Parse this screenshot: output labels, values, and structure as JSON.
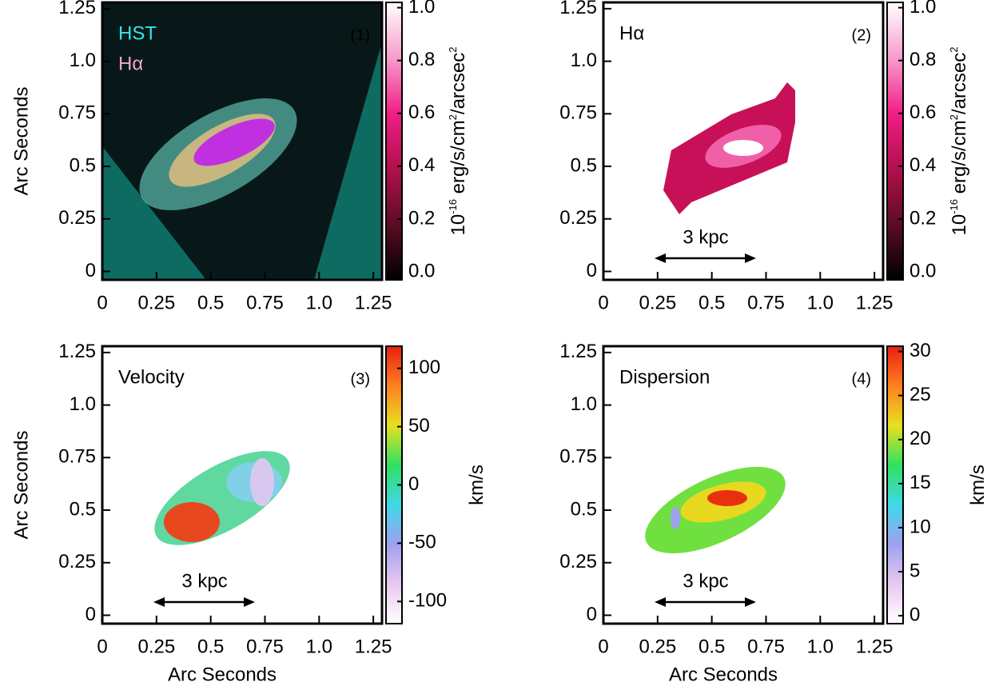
{
  "chart_data": [
    {
      "type": "image",
      "panel_label": "(1)",
      "annotations": [
        {
          "text": "HST",
          "color": "#33e6e6"
        },
        {
          "text": "Hα",
          "color": "#f2a6cc"
        }
      ],
      "ylabel": "Arc Seconds",
      "xlim": [
        0,
        1.29
      ],
      "ylim": [
        -0.04,
        1.28
      ],
      "xticks": [
        0,
        0.25,
        0.5,
        0.75,
        {
          "value": 1,
          "label": "1.0"
        },
        1.25
      ],
      "yticks": [
        0,
        0.25,
        0.5,
        0.75,
        {
          "value": 1,
          "label": "1.0"
        },
        1.25
      ],
      "colorbar": {
        "lim": [
          -0.03,
          1.02
        ],
        "ticks": [
          {
            "value": 0,
            "label": "0.0"
          },
          0.2,
          0.4,
          0.6,
          0.8,
          {
            "value": 1,
            "label": "1.0"
          }
        ],
        "label_parts": [
          "10",
          "-16",
          " erg/s/cm",
          "2",
          "/arcsec",
          "2"
        ],
        "colormap": [
          "#000000",
          "#5c0c24",
          "#b0104c",
          "#f01e86",
          "#f79ccc",
          "#ffffff"
        ]
      }
    },
    {
      "type": "image",
      "panel_label": "(2)",
      "annotations": [
        {
          "text": "Hα",
          "color": "#000000"
        }
      ],
      "scale_bar": "3 kpc",
      "xlim": [
        0,
        1.29
      ],
      "ylim": [
        -0.04,
        1.28
      ],
      "xticks": [
        0,
        0.25,
        0.5,
        0.75,
        {
          "value": 1,
          "label": "1.0"
        },
        1.25
      ],
      "yticks": [
        0,
        0.25,
        0.5,
        0.75,
        {
          "value": 1,
          "label": "1.0"
        },
        1.25
      ],
      "colorbar": {
        "lim": [
          -0.03,
          1.02
        ],
        "ticks": [
          {
            "value": 0,
            "label": "0.0"
          },
          0.2,
          0.4,
          0.6,
          0.8,
          {
            "value": 1,
            "label": "1.0"
          }
        ],
        "label_parts": [
          "10",
          "-16",
          " erg/s/cm",
          "2",
          "/arcsec",
          "2"
        ],
        "colormap": [
          "#000000",
          "#5c0c24",
          "#b0104c",
          "#f01e86",
          "#f79ccc",
          "#ffffff"
        ]
      }
    },
    {
      "type": "image",
      "panel_label": "(3)",
      "annotations": [
        {
          "text": "Velocity",
          "color": "#000000"
        }
      ],
      "scale_bar": "3 kpc",
      "xlabel": "Arc Seconds",
      "ylabel": "Arc Seconds",
      "xlim": [
        0,
        1.29
      ],
      "ylim": [
        -0.04,
        1.28
      ],
      "xticks": [
        0,
        0.25,
        0.5,
        0.75,
        {
          "value": 1,
          "label": "1.0"
        },
        1.25
      ],
      "yticks": [
        0,
        0.25,
        0.5,
        0.75,
        {
          "value": 1,
          "label": "1.0"
        },
        1.25
      ],
      "colorbar": {
        "lim": [
          -119,
          119
        ],
        "ticks": [
          -100,
          -50,
          0,
          50,
          100
        ],
        "label_parts": [
          "km/s"
        ],
        "colormap": [
          "#ffffff",
          "#e8c8f0",
          "#a0a0f0",
          "#40d8e8",
          "#30e060",
          "#e8e020",
          "#ff8020",
          "#e82010"
        ]
      }
    },
    {
      "type": "image",
      "panel_label": "(4)",
      "annotations": [
        {
          "text": "Dispersion",
          "color": "#000000"
        }
      ],
      "scale_bar": "3 kpc",
      "xlabel": "Arc Seconds",
      "xlim": [
        0,
        1.29
      ],
      "ylim": [
        -0.04,
        1.28
      ],
      "xticks": [
        0,
        0.25,
        0.5,
        0.75,
        {
          "value": 1,
          "label": "1.0"
        },
        1.25
      ],
      "yticks": [
        0,
        0.25,
        0.5,
        0.75,
        {
          "value": 1,
          "label": "1.0"
        },
        1.25
      ],
      "colorbar": {
        "lim": [
          -0.9,
          30.6
        ],
        "ticks": [
          0,
          5,
          10,
          15,
          20,
          25,
          30
        ],
        "label_parts": [
          "km/s"
        ],
        "colormap": [
          "#ffffff",
          "#e8c8f0",
          "#a0a0f0",
          "#40d8e8",
          "#30e060",
          "#e8e020",
          "#ff8020",
          "#e82010"
        ]
      }
    }
  ]
}
